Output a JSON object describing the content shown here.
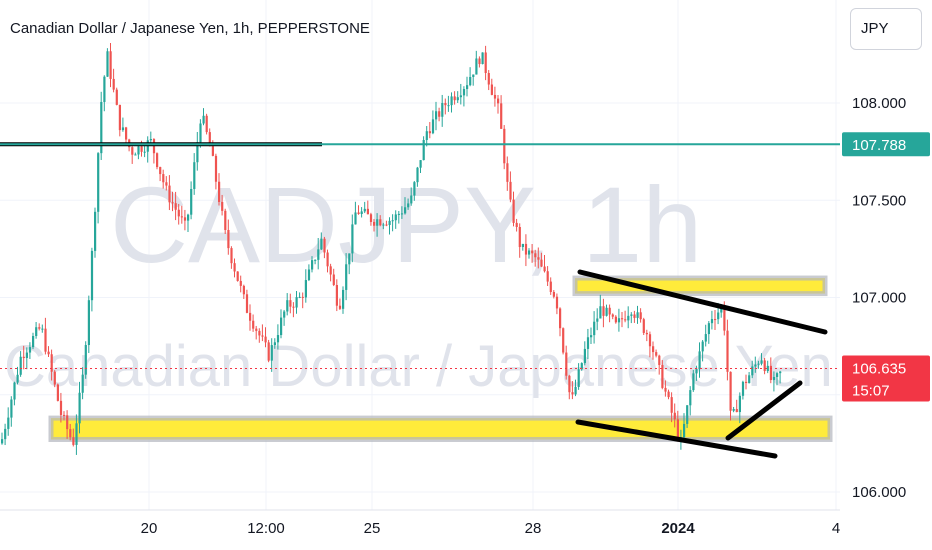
{
  "header": {
    "title": "Canadian Dollar / Japanese Yen, 1h, PEPPERSTONE",
    "currency": "JPY"
  },
  "watermark": {
    "big": "CADJPY, 1h",
    "small": "Canadian Dollar / Japanese Yen"
  },
  "colors": {
    "up": "#26a69a",
    "down": "#ef5350",
    "hline_level": "#26a69a",
    "zone_fill": "#ffeb3b",
    "zone_border": "#b2b5be",
    "price_badge": "#f23645",
    "trendline": "#000000",
    "watermark": "#e0e3eb"
  },
  "chart_data": {
    "type": "candlestick",
    "x_labels": [
      "20",
      "12:00",
      "25",
      "28",
      "2024",
      "4"
    ],
    "y_ticks": [
      106.0,
      106.5,
      107.0,
      107.5,
      108.0
    ],
    "y_tick_labels": [
      "106.000",
      "107.000",
      "107.500",
      "108.000"
    ],
    "ylim": [
      105.98,
      108.48
    ],
    "current_price": "106.635",
    "countdown": "15:07",
    "level_line": {
      "value": 107.788,
      "label": "107.788"
    },
    "drawn_level": 107.788,
    "zones": [
      {
        "low": 107.02,
        "high": 107.1
      },
      {
        "low": 106.27,
        "high": 106.38
      }
    ],
    "key_points": [
      {
        "x": "start",
        "price": 106.25
      },
      {
        "x": "19 early",
        "price": 106.6
      },
      {
        "x": "19",
        "price": 108.2
      },
      {
        "x": "20",
        "price": 107.8
      },
      {
        "x": "21",
        "price": 107.5
      },
      {
        "x": "12:00",
        "price": 106.7
      },
      {
        "x": "25",
        "price": 107.4
      },
      {
        "x": "26",
        "price": 108.2
      },
      {
        "x": "27",
        "price": 107.4
      },
      {
        "x": "28",
        "price": 107.0
      },
      {
        "x": "29",
        "price": 106.4
      },
      {
        "x": "2024",
        "price": 106.2
      },
      {
        "x": "3",
        "price": 106.635
      }
    ]
  }
}
